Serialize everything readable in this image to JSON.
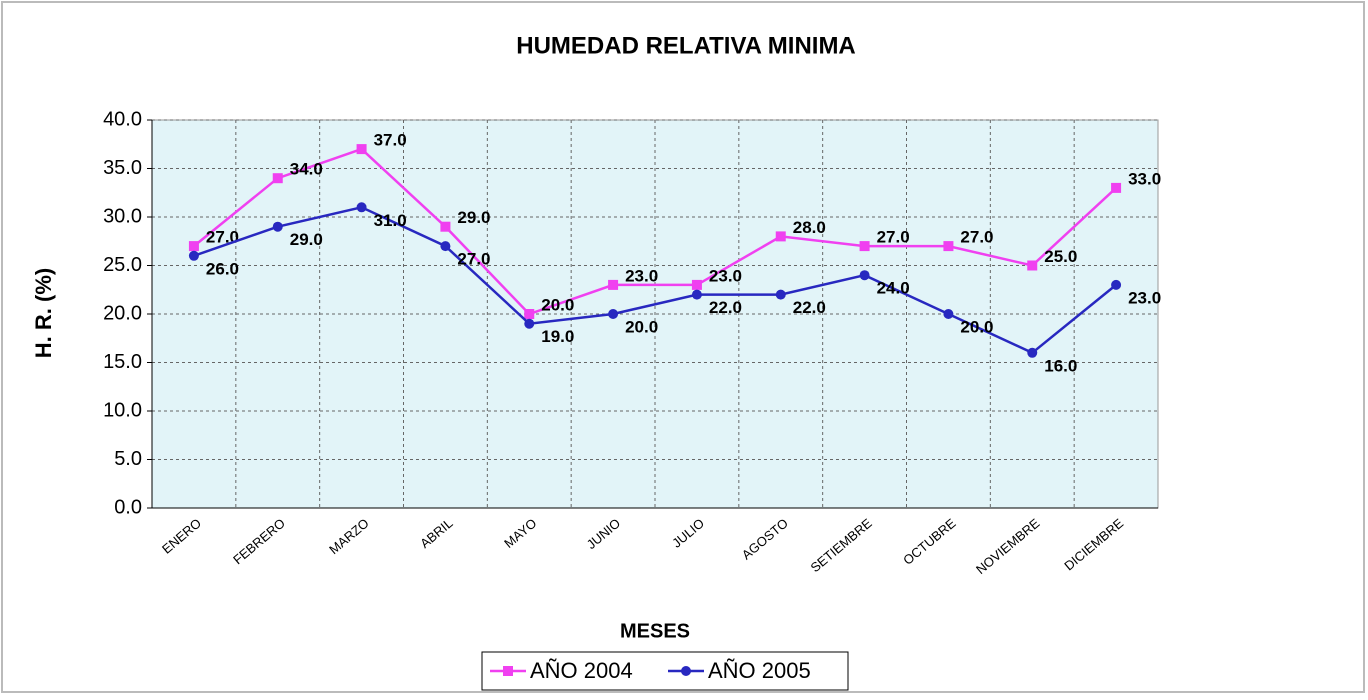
{
  "chart_data": {
    "type": "line",
    "title": "HUMEDAD RELATIVA MINIMA",
    "x_label": "MESES",
    "y_label": "H. R. (%)",
    "categories": [
      "ENERO",
      "FEBRERO",
      "MARZO",
      "ABRIL",
      "MAYO",
      "JUNIO",
      "JULIO",
      "AGOSTO",
      "SETIEMBRE",
      "OCTUBRE",
      "NOVIEMBRE",
      "DICIEMBRE"
    ],
    "series": [
      {
        "name": "AÑO 2004",
        "color": "#f040f0",
        "marker": "square",
        "values": [
          27,
          34,
          37,
          29,
          20,
          23,
          23,
          28,
          27,
          27,
          25,
          33
        ],
        "value_labels": [
          "27.0",
          "34.0",
          "37.0",
          "29.0",
          "20.0",
          "23.0",
          "23.0",
          "28.0",
          "27.0",
          "27.0",
          "25.0",
          "33.0"
        ]
      },
      {
        "name": "AÑO 2005",
        "color": "#2828c0",
        "marker": "circle",
        "values": [
          26,
          29,
          31,
          27,
          19,
          20,
          22,
          22,
          24,
          20,
          16,
          23
        ],
        "value_labels": [
          "26.0",
          "29.0",
          "31.0",
          "27.0",
          "19.0",
          "20.0",
          "22.0",
          "22.0",
          "24.0",
          "20.0",
          "16.0",
          "23.0"
        ]
      }
    ],
    "ylim": [
      0,
      40
    ],
    "yticks": [
      {
        "value": 0,
        "label": "0.0"
      },
      {
        "value": 5,
        "label": "5.0"
      },
      {
        "value": 10,
        "label": "10.0"
      },
      {
        "value": 15,
        "label": "15.0"
      },
      {
        "value": 20,
        "label": "20.0"
      },
      {
        "value": 25,
        "label": "25.0"
      },
      {
        "value": 30,
        "label": "30.0"
      },
      {
        "value": 35,
        "label": "35.0"
      },
      {
        "value": 40,
        "label": "40.0"
      }
    ],
    "grid": true,
    "legend": "bottom"
  }
}
